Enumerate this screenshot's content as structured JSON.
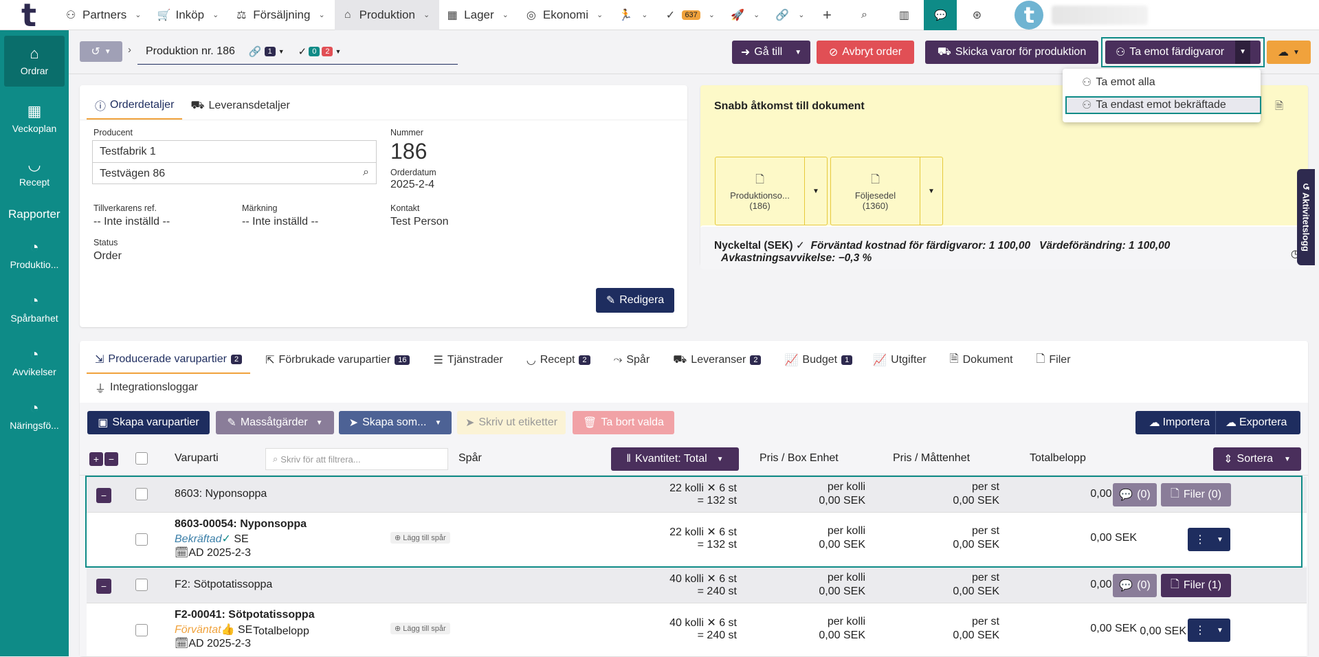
{
  "topnav": {
    "items": [
      {
        "label": "Partners",
        "icon": "handshake-icon"
      },
      {
        "label": "Inköp",
        "icon": "cart-icon"
      },
      {
        "label": "Försäljning",
        "icon": "hand-coin-icon"
      },
      {
        "label": "Produktion",
        "icon": "pot-icon"
      },
      {
        "label": "Lager",
        "icon": "warehouse-icon"
      },
      {
        "label": "Ekonomi",
        "icon": "coins-icon"
      }
    ],
    "tasks_badge": "637"
  },
  "sidebar": {
    "items": [
      {
        "label": "Ordrar",
        "icon": "pot-icon"
      },
      {
        "label": "Veckoplan",
        "icon": "calendar-icon"
      },
      {
        "label": "Recept",
        "icon": "bowl-icon"
      }
    ],
    "reports_heading": "Rapporter",
    "reports": [
      {
        "label": "Produktio...",
        "icon": "pie-chart-icon"
      },
      {
        "label": "Spårbarhet",
        "icon": "pie-chart-icon"
      },
      {
        "label": "Avvikelser",
        "icon": "pie-chart-icon"
      },
      {
        "label": "Näringsfö...",
        "icon": "pie-chart-icon"
      }
    ]
  },
  "context": {
    "order_title": "Produktion nr. 186",
    "link_count": "1",
    "check_ok": "0",
    "check_err": "2",
    "goto_label": "Gå till",
    "cancel_label": "Avbryt order",
    "send_label": "Skicka varor för produktion",
    "receive_label": "Ta emot färdigvaror"
  },
  "dropdown": {
    "item1": "Ta emot alla",
    "item2": "Ta endast emot bekräftade"
  },
  "details": {
    "tab1": "Orderdetaljer",
    "tab2": "Leveransdetaljer",
    "producer_label": "Producent",
    "producer_name": "Testfabrik 1",
    "producer_address": "Testvägen 86",
    "number_label": "Nummer",
    "number_value": "186",
    "orderdate_label": "Orderdatum",
    "orderdate_value": "2025-2-4",
    "mfr_ref_label": "Tillverkarens ref.",
    "mfr_ref_value": "-- Inte inställd --",
    "marking_label": "Märkning",
    "marking_value": "-- Inte inställd --",
    "contact_label": "Kontakt",
    "contact_value": "Test Person",
    "status_label": "Status",
    "status_value": "Order",
    "edit_label": "Redigera"
  },
  "docs": {
    "title": "Snabb åtkomst till dokument",
    "doc1_name": "Produktionso...",
    "doc1_num": "(186)",
    "doc2_name": "Följesedel",
    "doc2_num": "(1360)"
  },
  "kpi": {
    "label": "Nyckeltal (SEK)",
    "expected": "Förväntad kostnad för färdigvaror: 1 100,00",
    "value_change": "Värdeförändring: 1 100,00",
    "yield": "Avkastningsavvikelse: −0,3 %"
  },
  "activity_log": "Aktivitetslogg",
  "tabs": [
    {
      "label": "Producerade varupartier",
      "count": "2",
      "icon": "box-out-icon"
    },
    {
      "label": "Förbrukade varupartier",
      "count": "16",
      "icon": "box-in-icon"
    },
    {
      "label": "Tjänstrader",
      "count": "",
      "icon": "list-icon"
    },
    {
      "label": "Recept",
      "count": "2",
      "icon": "bowl-icon"
    },
    {
      "label": "Spår",
      "count": "",
      "icon": "route-icon"
    },
    {
      "label": "Leveranser",
      "count": "2",
      "icon": "truck-icon"
    },
    {
      "label": "Budget",
      "count": "1",
      "icon": "chart-line-icon"
    },
    {
      "label": "Utgifter",
      "count": "",
      "icon": "chart-line-icon"
    },
    {
      "label": "Dokument",
      "count": "",
      "icon": "document-icon"
    },
    {
      "label": "Filer",
      "count": "",
      "icon": "file-icon"
    },
    {
      "label": "Integrationsloggar",
      "count": "",
      "icon": "plug-icon"
    }
  ],
  "toolbar": {
    "create": "Skapa varupartier",
    "mass": "Massåtgärder",
    "create_as": "Skapa som...",
    "print": "Skriv ut etiketter",
    "delete": "Ta bort valda",
    "import": "Importera",
    "export": "Exportera"
  },
  "table": {
    "col_batch": "Varuparti",
    "filter_placeholder": "Skriv för att filtrera...",
    "col_trace": "Spår",
    "col_qty": "Kvantitet: Total",
    "col_price_box": "Pris / Box Enhet",
    "col_price_unit": "Pris / Måttenhet",
    "col_total": "Totalbelopp",
    "sort": "Sortera",
    "add_trace": "Lägg till spår",
    "groups": [
      {
        "name": "8603: Nyponsoppa",
        "qty1": "22 kolli  ✕  6 st",
        "qty2": "=  132 st",
        "pb1": "per kolli",
        "pb2": "0,00 SEK",
        "pu1": "per st",
        "pu2": "0,00 SEK",
        "total": "0,00 SEK",
        "comments": "(0)",
        "files": "Filer (0)",
        "item": {
          "name": "8603-00054: Nyponsoppa",
          "status": "Bekräftad",
          "status_icon": "✓",
          "country": "SE",
          "date": "AD 2025-2-3",
          "qty1": "22 kolli  ✕  6 st",
          "qty2": "=  132 st",
          "pb1": "per kolli",
          "pb2": "0,00 SEK",
          "pu1": "per st",
          "pu2": "0,00 SEK",
          "total": "0,00 SEK"
        }
      },
      {
        "name": "F2: Sötpotatissoppa",
        "qty1": "40 kolli  ✕  6 st",
        "qty2": "=  240 st",
        "pb1": "per kolli",
        "pb2": "0,00 SEK",
        "pu1": "per st",
        "pu2": "0,00 SEK",
        "total": "0,00 SEK",
        "comments": "(0)",
        "files": "Filer (1)",
        "item": {
          "name": "F2-00041: Sötpotatissoppa",
          "status": "Förväntat",
          "status_icon": "👍",
          "country": "SE",
          "date": "AD 2025-2-3",
          "qty1": "40 kolli  ✕  6 st",
          "qty2": "=  240 st",
          "pb1": "per kolli",
          "pb2": "0,00 SEK",
          "pu1": "per st",
          "pu2": "0,00 SEK",
          "total": "0,00 SEK"
        }
      }
    ],
    "footer_label": "Totalbelopp",
    "footer_total": "0,00 SEK"
  }
}
